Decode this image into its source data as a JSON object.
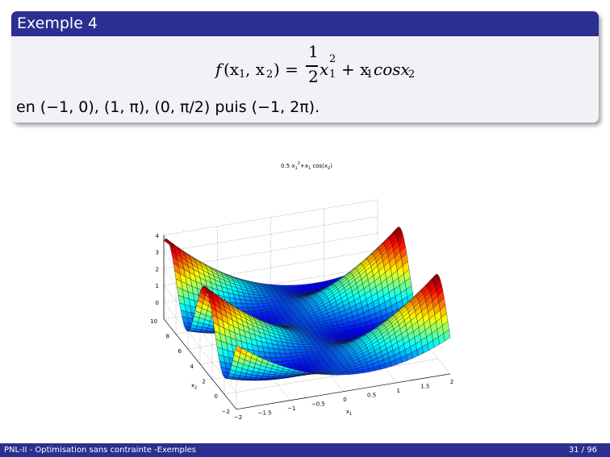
{
  "block": {
    "title": "Exemple 4",
    "points_text": "en (−1, 0), (1, π), (0, π/2) puis (−1, 2π)."
  },
  "formula": {
    "f": "f",
    "args": "(x",
    "sub1": "1",
    "comma": ", x",
    "sub2": "2",
    "close": ") =",
    "num": "1",
    "den": "2",
    "x": "x",
    "x_sub1": "1",
    "x_sup2": "2",
    "plus": "+ x",
    "cos_sub1": "1",
    "cos": "cosx",
    "cos_sub2": "2"
  },
  "chart_data": {
    "type": "surface",
    "title": "0.5 x1^2+x1 cos(x2)",
    "title_parts": {
      "base": "0.5 x",
      "sub1": "1",
      "sup": "2",
      "mid": "+x",
      "sub2": "1",
      "tail": " cos(x",
      "sub3": "2",
      "end": ")"
    },
    "function": "0.5*x1^2 + x1*cos(x2)",
    "x1_range": [
      -2,
      2
    ],
    "x2_range": [
      -2,
      10
    ],
    "z_range": [
      -1,
      4
    ],
    "z_visible_ticks": [
      "0",
      "1",
      "2",
      "3",
      "4"
    ],
    "x1_ticks": [
      "−2",
      "−1.5",
      "−1",
      "−0.5",
      "0",
      "0.5",
      "1",
      "1.5",
      "2"
    ],
    "x2_ticks": [
      "−2",
      "0",
      "2",
      "4",
      "6",
      "8",
      "10"
    ],
    "xlabel": "x1",
    "ylabel": "x2",
    "colormap": "jet",
    "grid": true,
    "colors": [
      "#00008f",
      "#0000ff",
      "#00ffff",
      "#ffff00",
      "#ff0000",
      "#800000"
    ]
  },
  "footer": {
    "left": "PNL-II - Optimisation sans contrainte -Exemples",
    "right": "31 / 96"
  },
  "colors": {
    "beamer_blue": "#2b2f8f",
    "block_body": "#f1f1f7"
  }
}
